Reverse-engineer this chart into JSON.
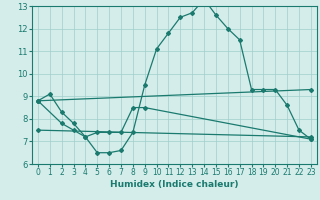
{
  "xlabel": "Humidex (Indice chaleur)",
  "xlim": [
    -0.5,
    23.5
  ],
  "ylim": [
    6,
    13
  ],
  "yticks": [
    6,
    7,
    8,
    9,
    10,
    11,
    12,
    13
  ],
  "xticks": [
    0,
    1,
    2,
    3,
    4,
    5,
    6,
    7,
    8,
    9,
    10,
    11,
    12,
    13,
    14,
    15,
    16,
    17,
    18,
    19,
    20,
    21,
    22,
    23
  ],
  "bg_color": "#d4edeb",
  "grid_color": "#9fcfca",
  "line_color": "#1a7a6e",
  "line1_x": [
    0,
    1,
    2,
    3,
    4,
    5,
    6,
    7,
    8,
    9,
    10,
    11,
    12,
    13,
    14,
    15,
    16,
    17,
    18,
    19,
    20,
    21,
    22,
    23
  ],
  "line1_y": [
    8.8,
    9.1,
    8.3,
    7.8,
    7.2,
    6.5,
    6.5,
    6.6,
    7.4,
    9.5,
    11.1,
    11.8,
    12.5,
    12.7,
    13.3,
    12.6,
    12.0,
    11.5,
    9.3,
    9.3,
    9.3,
    8.6,
    7.5,
    7.1
  ],
  "line2_x": [
    0,
    2,
    3,
    4,
    5,
    6,
    7,
    8,
    9,
    23
  ],
  "line2_y": [
    8.8,
    7.8,
    7.5,
    7.2,
    7.4,
    7.4,
    7.4,
    8.5,
    8.5,
    7.1
  ],
  "line3_x": [
    0,
    23
  ],
  "line3_y": [
    8.8,
    9.3
  ],
  "line4_x": [
    0,
    23
  ],
  "line4_y": [
    7.5,
    7.2
  ]
}
